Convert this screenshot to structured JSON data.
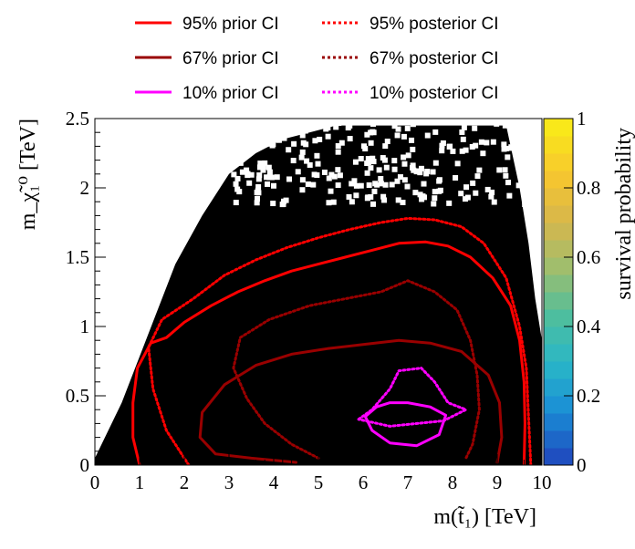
{
  "chart_data": {
    "type": "heatmap",
    "title": "",
    "xlabel": "m(t̃₁) [TeV]",
    "ylabel": "m_χ̃₁⁰ [TeV]",
    "xlim": [
      0,
      10
    ],
    "ylim": [
      0,
      2.5
    ],
    "x_ticks": [
      "0",
      "1",
      "2",
      "3",
      "4",
      "5",
      "6",
      "7",
      "8",
      "9",
      "10"
    ],
    "y_ticks": [
      "0",
      "0.5",
      "1",
      "1.5",
      "2",
      "2.5"
    ],
    "colorbar": {
      "label": "survival probability",
      "range": [
        0,
        1
      ],
      "ticks": [
        "0",
        "0.2",
        "0.4",
        "0.6",
        "0.8",
        "1"
      ],
      "colors": [
        "#1f4fc0",
        "#1a8fd6",
        "#2ab7c7",
        "#4fbe9d",
        "#9ebe6e",
        "#d7b64c",
        "#f7c72e",
        "#f9e81a"
      ]
    },
    "excluded_region": {
      "fill": "#000000",
      "left_edge": [
        [
          0,
          0.05
        ],
        [
          0.6,
          0.45
        ],
        [
          1.2,
          0.95
        ],
        [
          1.8,
          1.45
        ],
        [
          2.4,
          1.8
        ],
        [
          3.0,
          2.1
        ],
        [
          3.6,
          2.25
        ],
        [
          4.2,
          2.35
        ],
        [
          4.8,
          2.4
        ],
        [
          5.4,
          2.45
        ],
        [
          10,
          2.45
        ]
      ],
      "right_edge": [
        [
          9.2,
          2.45
        ],
        [
          9.5,
          2.0
        ],
        [
          9.7,
          1.6
        ],
        [
          9.85,
          1.2
        ],
        [
          10,
          0.9
        ],
        [
          10,
          0
        ]
      ]
    },
    "legend": {
      "placement": "top",
      "entries": [
        {
          "label": "95%  prior CI",
          "color": "#ff0000",
          "style": "solid"
        },
        {
          "label": "95% posterior CI",
          "color": "#ff0000",
          "style": "dotted"
        },
        {
          "label": "67%  prior CI",
          "color": "#990000",
          "style": "solid"
        },
        {
          "label": "67% posterior CI",
          "color": "#990000",
          "style": "dotted"
        },
        {
          "label": "10%  prior CI",
          "color": "#ff00ff",
          "style": "solid"
        },
        {
          "label": "10% posterior CI",
          "color": "#ff00ff",
          "style": "dotted"
        }
      ]
    },
    "contours": [
      {
        "label": "95%  prior CI",
        "color": "#ff0000",
        "dash": false,
        "points": [
          [
            1.0,
            0.0
          ],
          [
            0.85,
            0.2
          ],
          [
            0.85,
            0.45
          ],
          [
            0.95,
            0.7
          ],
          [
            1.25,
            0.88
          ],
          [
            1.6,
            0.92
          ],
          [
            2.0,
            1.03
          ],
          [
            2.6,
            1.15
          ],
          [
            3.2,
            1.25
          ],
          [
            3.8,
            1.33
          ],
          [
            4.4,
            1.4
          ],
          [
            5.0,
            1.45
          ],
          [
            5.6,
            1.5
          ],
          [
            6.2,
            1.55
          ],
          [
            6.8,
            1.6
          ],
          [
            7.4,
            1.61
          ],
          [
            7.9,
            1.58
          ],
          [
            8.4,
            1.5
          ],
          [
            8.9,
            1.35
          ],
          [
            9.3,
            1.15
          ],
          [
            9.5,
            0.9
          ],
          [
            9.6,
            0.6
          ],
          [
            9.62,
            0.3
          ],
          [
            9.6,
            0.0
          ]
        ]
      },
      {
        "label": "95% posterior CI",
        "color": "#ff0000",
        "dash": true,
        "points": [
          [
            2.1,
            0.0
          ],
          [
            1.6,
            0.25
          ],
          [
            1.3,
            0.55
          ],
          [
            1.2,
            0.85
          ],
          [
            1.5,
            1.05
          ],
          [
            2.2,
            1.2
          ],
          [
            2.9,
            1.37
          ],
          [
            3.6,
            1.48
          ],
          [
            4.3,
            1.57
          ],
          [
            5.0,
            1.64
          ],
          [
            5.7,
            1.7
          ],
          [
            6.4,
            1.75
          ],
          [
            7.0,
            1.78
          ],
          [
            7.6,
            1.77
          ],
          [
            8.2,
            1.72
          ],
          [
            8.7,
            1.6
          ],
          [
            9.2,
            1.35
          ],
          [
            9.5,
            1.0
          ],
          [
            9.65,
            0.7
          ],
          [
            9.7,
            0.35
          ],
          [
            9.75,
            0.0
          ]
        ]
      },
      {
        "label": "67%  prior CI",
        "color": "#990000",
        "dash": false,
        "points": [
          [
            4.5,
            0.02
          ],
          [
            3.5,
            0.05
          ],
          [
            2.7,
            0.08
          ],
          [
            2.35,
            0.2
          ],
          [
            2.4,
            0.38
          ],
          [
            2.9,
            0.58
          ],
          [
            3.6,
            0.72
          ],
          [
            4.4,
            0.8
          ],
          [
            5.2,
            0.84
          ],
          [
            6.0,
            0.87
          ],
          [
            6.8,
            0.9
          ],
          [
            7.5,
            0.88
          ],
          [
            8.2,
            0.82
          ],
          [
            8.8,
            0.65
          ],
          [
            9.05,
            0.45
          ],
          [
            9.1,
            0.2
          ],
          [
            9.0,
            0.02
          ]
        ]
      },
      {
        "label": "67% posterior CI",
        "color": "#990000",
        "dash": true,
        "points": [
          [
            5.0,
            0.05
          ],
          [
            4.4,
            0.15
          ],
          [
            3.8,
            0.3
          ],
          [
            3.4,
            0.48
          ],
          [
            3.1,
            0.7
          ],
          [
            3.25,
            0.92
          ],
          [
            3.9,
            1.05
          ],
          [
            4.8,
            1.15
          ],
          [
            5.6,
            1.2
          ],
          [
            6.4,
            1.25
          ],
          [
            7.0,
            1.33
          ],
          [
            7.6,
            1.25
          ],
          [
            8.1,
            1.12
          ],
          [
            8.4,
            0.9
          ],
          [
            8.55,
            0.65
          ],
          [
            8.6,
            0.4
          ],
          [
            8.45,
            0.15
          ],
          [
            8.3,
            0.05
          ]
        ]
      },
      {
        "label": "10%  prior CI",
        "color": "#ff00ff",
        "dash": false,
        "points": [
          [
            6.2,
            0.25
          ],
          [
            6.05,
            0.35
          ],
          [
            6.3,
            0.42
          ],
          [
            6.6,
            0.45
          ],
          [
            7.0,
            0.45
          ],
          [
            7.5,
            0.42
          ],
          [
            7.85,
            0.36
          ],
          [
            7.7,
            0.22
          ],
          [
            7.2,
            0.14
          ],
          [
            6.6,
            0.16
          ],
          [
            6.2,
            0.25
          ]
        ]
      },
      {
        "label": "10% posterior CI",
        "color": "#ff00ff",
        "dash": true,
        "points": [
          [
            5.9,
            0.33
          ],
          [
            6.2,
            0.4
          ],
          [
            6.6,
            0.55
          ],
          [
            6.8,
            0.68
          ],
          [
            7.3,
            0.7
          ],
          [
            7.6,
            0.6
          ],
          [
            7.9,
            0.45
          ],
          [
            8.3,
            0.4
          ],
          [
            7.8,
            0.32
          ],
          [
            7.2,
            0.3
          ],
          [
            6.6,
            0.28
          ],
          [
            5.9,
            0.33
          ]
        ]
      }
    ]
  }
}
